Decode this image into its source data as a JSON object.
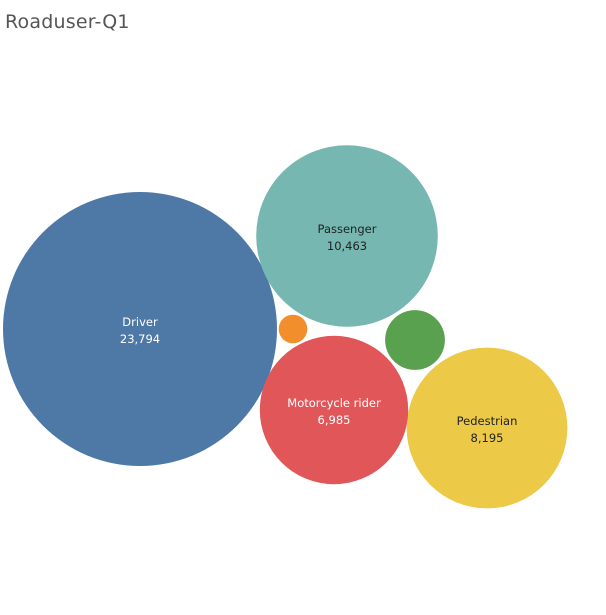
{
  "chart_data": {
    "type": "bubble",
    "title": "Roaduser-Q1",
    "bubbles": [
      {
        "name": "Driver",
        "value": 23794,
        "value_label": "23,794",
        "color": "#4e79a7",
        "label_color": "#ffffff"
      },
      {
        "name": "Passenger",
        "value": 10463,
        "value_label": "10,463",
        "color": "#76b7b2",
        "label_color": "#222222"
      },
      {
        "name": "Pedestrian",
        "value": 8195,
        "value_label": "8,195",
        "color": "#edc948",
        "label_color": "#222222"
      },
      {
        "name": "Motorcycle rider",
        "value": 6985,
        "value_label": "6,985",
        "color": "#e15759",
        "label_color": "#ffffff"
      },
      {
        "name": "",
        "value": 1130,
        "value_label": "",
        "color": "#59a14f",
        "label_color": "#ffffff"
      },
      {
        "name": "",
        "value": 260,
        "value_label": "",
        "color": "#f28e2b",
        "label_color": "#ffffff"
      }
    ]
  }
}
